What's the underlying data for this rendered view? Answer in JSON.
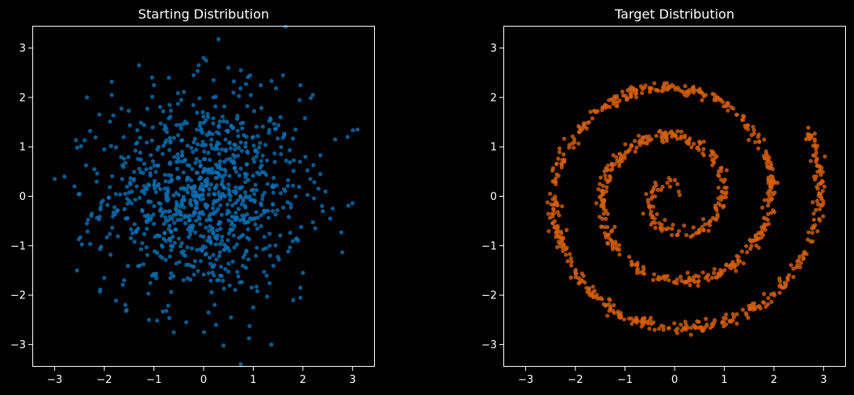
{
  "chart_data": [
    {
      "type": "scatter",
      "title": "Starting Distribution",
      "color": "#0a6fb3",
      "xlim": [
        -3.45,
        3.45
      ],
      "ylim": [
        -3.45,
        3.45
      ],
      "xticks": [
        "−3",
        "−2",
        "−1",
        "0",
        "1",
        "2",
        "3"
      ],
      "yticks": [
        "3",
        "2",
        "1",
        "0",
        "−1",
        "−2",
        "−3"
      ],
      "xtick_values": [
        -3,
        -2,
        -1,
        0,
        1,
        2,
        3
      ],
      "ytick_values": [
        3,
        2,
        1,
        0,
        -1,
        -2,
        -3
      ],
      "grid": false,
      "distribution": "2D standard normal",
      "n_points": 1000,
      "points": [
        [
          0.3,
          3.18
        ],
        [
          0.0,
          2.8
        ],
        [
          0.05,
          2.75
        ],
        [
          -0.1,
          2.65
        ],
        [
          0.75,
          2.55
        ],
        [
          -1.3,
          2.65
        ],
        [
          1.6,
          2.45
        ],
        [
          -1.85,
          2.32
        ],
        [
          -1.0,
          2.25
        ],
        [
          1.15,
          2.25
        ],
        [
          1.95,
          2.25
        ],
        [
          -2.35,
          2.0
        ],
        [
          2.2,
          2.05
        ],
        [
          -1.85,
          2.05
        ],
        [
          0.6,
          2.1
        ],
        [
          -0.45,
          1.95
        ],
        [
          0.95,
          2.05
        ],
        [
          3.1,
          1.35
        ],
        [
          2.65,
          1.15
        ],
        [
          2.9,
          1.2
        ],
        [
          3.45,
          0.98
        ],
        [
          -3.0,
          0.35
        ],
        [
          -2.8,
          0.4
        ],
        [
          -2.6,
          0.2
        ],
        [
          -2.55,
          -1.5
        ],
        [
          2.55,
          -0.45
        ],
        [
          2.4,
          -0.3
        ],
        [
          2.6,
          -0.25
        ],
        [
          2.35,
          0.45
        ],
        [
          -1.55,
          -2.3
        ],
        [
          -1.1,
          -2.5
        ],
        [
          -0.6,
          -2.75
        ],
        [
          0.25,
          -2.6
        ],
        [
          0.4,
          -3.02
        ],
        [
          0.75,
          -3.4
        ],
        [
          1.0,
          -2.25
        ],
        [
          1.95,
          -2.05
        ],
        [
          1.95,
          -1.85
        ],
        [
          2.0,
          -1.55
        ],
        [
          -2.0,
          -1.65
        ],
        [
          -1.6,
          -1.7
        ],
        [
          0.1,
          -2.35
        ],
        [
          -0.35,
          -2.55
        ],
        [
          0.55,
          -2.45
        ],
        [
          -2.35,
          -0.55
        ],
        [
          -2.25,
          -0.35
        ],
        [
          -2.5,
          0.05
        ],
        [
          -2.2,
          0.55
        ],
        [
          -2.0,
          0.95
        ],
        [
          2.15,
          0.35
        ],
        [
          2.05,
          0.8
        ],
        [
          1.85,
          1.35
        ],
        [
          1.55,
          1.6
        ],
        [
          1.35,
          1.55
        ],
        [
          -0.7,
          2.4
        ],
        [
          0.5,
          2.6
        ],
        [
          -0.2,
          2.45
        ],
        [
          0.2,
          2.35
        ]
      ]
    },
    {
      "type": "scatter",
      "title": "Target Distribution",
      "color": "#d65f0a",
      "xlim": [
        -3.45,
        3.45
      ],
      "ylim": [
        -3.45,
        3.45
      ],
      "xticks": [
        "−3",
        "−2",
        "−1",
        "0",
        "1",
        "2",
        "3"
      ],
      "yticks": [
        "3",
        "2",
        "1",
        "0",
        "−1",
        "−2",
        "−3"
      ],
      "xtick_values": [
        -3,
        -2,
        -1,
        0,
        1,
        2,
        3
      ],
      "ytick_values": [
        3,
        2,
        1,
        0,
        -1,
        -2,
        -3
      ],
      "grid": false,
      "distribution": "spiral",
      "n_points": 1000,
      "spiral": {
        "theta_min": 0.6,
        "theta_max": 19.3,
        "growth": 0.155,
        "noise": 0.06
      }
    }
  ]
}
